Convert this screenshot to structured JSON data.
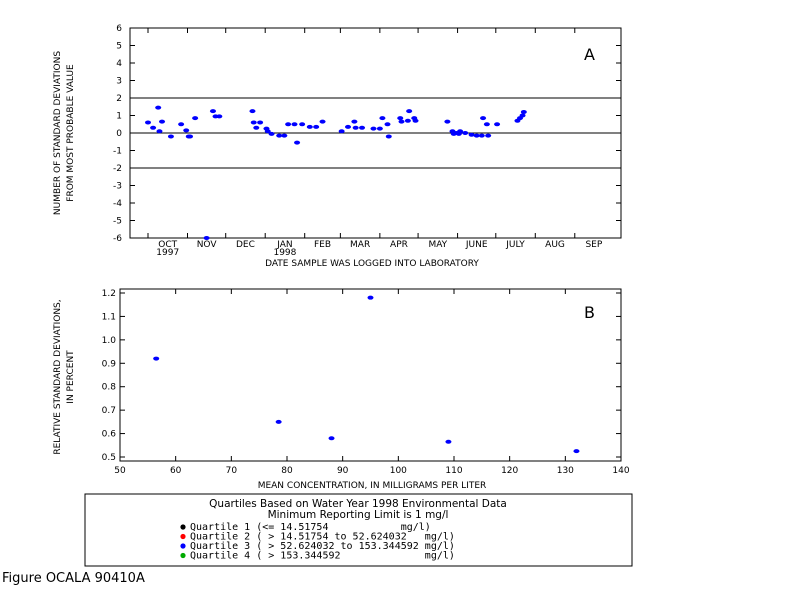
{
  "caption": "Figure OCALA 90410A",
  "chart_data": [
    {
      "panel_label": "A",
      "type": "scatter",
      "xlabel": "DATE SAMPLE WAS LOGGED INTO LABORATORY",
      "ylabel": [
        "NUMBER OF STANDARD DEVIATIONS",
        "FROM MOST PROBABLE VALUE"
      ],
      "ylim": [
        -6,
        6
      ],
      "yticks": [
        "-6",
        "-5",
        "-4",
        "-3",
        "-2",
        "-1",
        "0",
        "1",
        "2",
        "3",
        "4",
        "5",
        "6"
      ],
      "xticks": [
        {
          "label": "OCT",
          "sub": "1997"
        },
        {
          "label": "NOV"
        },
        {
          "label": "DEC"
        },
        {
          "label": "JAN",
          "sub": "1998"
        },
        {
          "label": "FEB"
        },
        {
          "label": "MAR"
        },
        {
          "label": "APR"
        },
        {
          "label": "MAY"
        },
        {
          "label": "JUNE"
        },
        {
          "label": "JULY"
        },
        {
          "label": "AUG"
        },
        {
          "label": "SEP"
        }
      ],
      "reference_lines": [
        2,
        0,
        -2
      ],
      "grid": false,
      "series": [
        {
          "color": "#0000ff",
          "points": [
            [
              "1997-10-01",
              0.6
            ],
            [
              "1997-10-05",
              0.3
            ],
            [
              "1997-10-09",
              1.45
            ],
            [
              "1997-10-10",
              0.1
            ],
            [
              "1997-10-12",
              0.65
            ],
            [
              "1997-10-19",
              -0.2
            ],
            [
              "1997-10-27",
              0.5
            ],
            [
              "1997-10-31",
              0.15
            ],
            [
              "1997-11-02",
              -0.2
            ],
            [
              "1997-11-03",
              -0.2
            ],
            [
              "1997-11-07",
              0.85
            ],
            [
              "1997-11-16",
              -6.0
            ],
            [
              "1997-11-21",
              1.25
            ],
            [
              "1997-11-23",
              0.95
            ],
            [
              "1997-11-26",
              0.95
            ],
            [
              "1997-12-22",
              1.25
            ],
            [
              "1997-12-23",
              0.6
            ],
            [
              "1997-12-25",
              0.3
            ],
            [
              "1997-12-28",
              0.6
            ],
            [
              "1998-01-02",
              0.25
            ],
            [
              "1998-01-03",
              0.1
            ],
            [
              "1998-01-06",
              -0.05
            ],
            [
              "1998-01-12",
              -0.15
            ],
            [
              "1998-01-16",
              -0.15
            ],
            [
              "1998-01-19",
              0.5
            ],
            [
              "1998-01-24",
              0.5
            ],
            [
              "1998-01-26",
              -0.55
            ],
            [
              "1998-01-30",
              0.5
            ],
            [
              "1998-02-05",
              0.35
            ],
            [
              "1998-02-10",
              0.35
            ],
            [
              "1998-02-15",
              0.65
            ],
            [
              "1998-03-02",
              0.1
            ],
            [
              "1998-03-07",
              0.35
            ],
            [
              "1998-03-12",
              0.65
            ],
            [
              "1998-03-13",
              0.3
            ],
            [
              "1998-03-18",
              0.3
            ],
            [
              "1998-03-27",
              0.25
            ],
            [
              "1998-04-01",
              0.25
            ],
            [
              "1998-04-03",
              0.85
            ],
            [
              "1998-04-07",
              0.5
            ],
            [
              "1998-04-08",
              -0.2
            ],
            [
              "1998-04-17",
              0.85
            ],
            [
              "1998-04-18",
              0.65
            ],
            [
              "1998-04-23",
              0.7
            ],
            [
              "1998-04-24",
              1.25
            ],
            [
              "1998-04-28",
              0.85
            ],
            [
              "1998-04-29",
              0.7
            ],
            [
              "1998-05-24",
              0.65
            ],
            [
              "1998-05-28",
              0.1
            ],
            [
              "1998-05-29",
              -0.05
            ],
            [
              "1998-05-31",
              0.0
            ],
            [
              "1998-06-02",
              -0.05
            ],
            [
              "1998-06-03",
              0.1
            ],
            [
              "1998-06-07",
              0.0
            ],
            [
              "1998-06-12",
              -0.1
            ],
            [
              "1998-06-16",
              -0.15
            ],
            [
              "1998-06-20",
              -0.15
            ],
            [
              "1998-06-21",
              0.85
            ],
            [
              "1998-06-24",
              0.5
            ],
            [
              "1998-06-25",
              -0.15
            ],
            [
              "1998-07-02",
              0.5
            ],
            [
              "1998-07-18",
              0.7
            ],
            [
              "1998-07-20",
              0.85
            ],
            [
              "1998-07-22",
              1.0
            ],
            [
              "1998-07-23",
              1.2
            ]
          ]
        }
      ]
    },
    {
      "panel_label": "B",
      "type": "scatter",
      "xlabel": "MEAN CONCENTRATION, IN MILLIGRAMS PER LITER",
      "ylabel": [
        "RELATIVE STANDARD DEVIATIONS,",
        "IN PERCENT"
      ],
      "xlim": [
        50,
        140
      ],
      "ylim": [
        0.5,
        1.2
      ],
      "xticks": [
        "50",
        "60",
        "70",
        "80",
        "90",
        "100",
        "110",
        "120",
        "130",
        "140"
      ],
      "yticks": [
        "0.5",
        "0.6",
        "0.7",
        "0.8",
        "0.9",
        "1.0",
        "1.1",
        "1.2"
      ],
      "grid": false,
      "series": [
        {
          "color": "#0000ff",
          "points": [
            [
              56.5,
              0.92
            ],
            [
              78.5,
              0.65
            ],
            [
              88,
              0.58
            ],
            [
              95,
              1.18
            ],
            [
              109,
              0.565
            ],
            [
              132,
              0.525
            ]
          ]
        }
      ]
    }
  ],
  "legend": {
    "title": "Quartiles Based on Water Year 1998 Environmental Data",
    "subtitle": "Minimum Reporting Limit is 1 mg/l",
    "entries": [
      {
        "text": "Quartile 1 (<= 14.51754            mg/l)",
        "color": "#000000"
      },
      {
        "text": "Quartile 2 ( > 14.51754 to 52.624032   mg/l)",
        "color": "#ff0000"
      },
      {
        "text": "Quartile 3 ( > 52.624032 to 153.344592 mg/l)",
        "color": "#0000ff"
      },
      {
        "text": "Quartile 4 ( > 153.344592              mg/l)",
        "color": "#00aa00"
      }
    ]
  }
}
